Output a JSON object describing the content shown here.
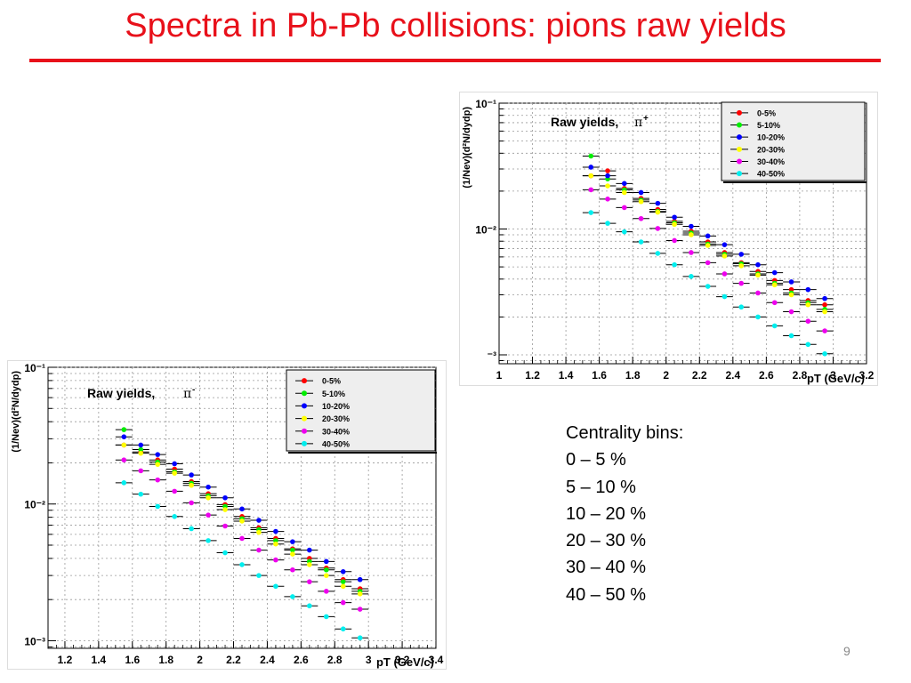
{
  "slide": {
    "title": "Spectra in Pb-Pb collisions: pions raw yields",
    "page_number": "9"
  },
  "centrality_text": {
    "heading": "Centrality bins:",
    "bins": [
      "0 – 5 %",
      "5 – 10 %",
      "10 – 20 %",
      "20 – 30 %",
      "30 – 40 %",
      "40 – 50 %"
    ]
  },
  "chart_data": [
    {
      "type": "scatter",
      "annotation": "Raw yields,",
      "particle_symbol": "π",
      "particle_charge": "+",
      "ylabel": "(1/Nev)(d²N/dydp)",
      "xlabel": "pT (GeV/c)",
      "xlim": [
        1.0,
        3.2
      ],
      "ylim": [
        0.00085,
        0.1
      ],
      "yscale": "log",
      "grid": true,
      "legend_position": "top-right",
      "x_ticks": [
        "1",
        "1.2",
        "1.4",
        "1.6",
        "1.8",
        "2",
        "2.2",
        "2.4",
        "2.6",
        "2.8",
        "3",
        "3.2"
      ],
      "y_ticks": [
        "10⁻¹",
        "10⁻²",
        "⁻³"
      ],
      "x": [
        1.55,
        1.65,
        1.75,
        1.85,
        1.95,
        2.05,
        2.15,
        2.25,
        2.35,
        2.45,
        2.55,
        2.65,
        2.75,
        2.85,
        2.95
      ],
      "series": [
        {
          "name": "0-5%",
          "color": "#ff0000",
          "values": [
            0.0265,
            0.029,
            0.021,
            0.0175,
            0.0143,
            0.0115,
            0.0096,
            0.0079,
            0.0065,
            0.0054,
            0.0046,
            0.0039,
            0.0033,
            0.0027,
            0.0025
          ]
        },
        {
          "name": "5-10%",
          "color": "#00ee00",
          "values": [
            0.038,
            0.025,
            0.0205,
            0.017,
            0.0138,
            0.0112,
            0.0093,
            0.0076,
            0.0063,
            0.0053,
            0.0044,
            0.0037,
            0.0031,
            0.0026,
            0.0023
          ]
        },
        {
          "name": "10-20%",
          "color": "#0000ff",
          "values": [
            0.031,
            0.0265,
            0.023,
            0.0195,
            0.016,
            0.0124,
            0.0105,
            0.0088,
            0.0075,
            0.0063,
            0.0052,
            0.0045,
            0.0038,
            0.0033,
            0.0028
          ]
        },
        {
          "name": "20-30%",
          "color": "#ffff00",
          "values": [
            0.0265,
            0.022,
            0.0195,
            0.0165,
            0.0136,
            0.0109,
            0.009,
            0.0074,
            0.0061,
            0.0051,
            0.0043,
            0.0036,
            0.003,
            0.0025,
            0.0022
          ]
        },
        {
          "name": "30-40%",
          "color": "#ee00ee",
          "values": [
            0.0205,
            0.0173,
            0.0148,
            0.0121,
            0.0101,
            0.0081,
            0.0065,
            0.0054,
            0.0044,
            0.0037,
            0.0031,
            0.0026,
            0.0022,
            0.00185,
            0.00155
          ]
        },
        {
          "name": "40-50%",
          "color": "#00eeee",
          "values": [
            0.0135,
            0.0111,
            0.0095,
            0.0079,
            0.0064,
            0.0052,
            0.0042,
            0.0035,
            0.0029,
            0.0024,
            0.002,
            0.0017,
            0.00142,
            0.00121,
            0.00102
          ]
        }
      ]
    },
    {
      "type": "scatter",
      "annotation": "Raw yields,",
      "particle_symbol": "π",
      "particle_charge": "-",
      "ylabel": "(1/Nev)(d²N/dydp)",
      "xlabel": "pT (GeV/c)",
      "xlim": [
        1.1,
        3.4
      ],
      "ylim": [
        0.00088,
        0.1
      ],
      "yscale": "log",
      "grid": true,
      "legend_position": "top-right",
      "x_ticks": [
        "1.2",
        "1.4",
        "1.6",
        "1.8",
        "2",
        "2.2",
        "2.4",
        "2.6",
        "2.8",
        "3",
        "3.2",
        "3.4"
      ],
      "y_ticks": [
        "10⁻¹",
        "10⁻²",
        "10⁻³"
      ],
      "x": [
        1.55,
        1.65,
        1.75,
        1.85,
        1.95,
        2.05,
        2.15,
        2.25,
        2.35,
        2.45,
        2.55,
        2.65,
        2.75,
        2.85,
        2.95
      ],
      "series": [
        {
          "name": "0-5%",
          "color": "#ff0000",
          "values": [
            0.027,
            0.024,
            0.021,
            0.018,
            0.0146,
            0.0119,
            0.0099,
            0.0081,
            0.0067,
            0.0056,
            0.0047,
            0.004,
            0.0034,
            0.0028,
            0.0024
          ]
        },
        {
          "name": "5-10%",
          "color": "#00ee00",
          "values": [
            0.035,
            0.025,
            0.0203,
            0.0172,
            0.0142,
            0.0115,
            0.0096,
            0.0078,
            0.0065,
            0.0054,
            0.0046,
            0.0038,
            0.0033,
            0.0027,
            0.0023
          ]
        },
        {
          "name": "10-20%",
          "color": "#0000ff",
          "values": [
            0.031,
            0.027,
            0.023,
            0.0197,
            0.0163,
            0.0133,
            0.0111,
            0.0092,
            0.0076,
            0.0063,
            0.0053,
            0.0046,
            0.0038,
            0.0032,
            0.0028
          ]
        },
        {
          "name": "20-30%",
          "color": "#ffff00",
          "values": [
            0.027,
            0.0235,
            0.0195,
            0.0168,
            0.0137,
            0.0111,
            0.0091,
            0.0075,
            0.0062,
            0.0051,
            0.0043,
            0.0036,
            0.003,
            0.0025,
            0.0022
          ]
        },
        {
          "name": "30-40%",
          "color": "#ee00ee",
          "values": [
            0.021,
            0.0175,
            0.015,
            0.0124,
            0.0102,
            0.0083,
            0.0069,
            0.0056,
            0.0046,
            0.0039,
            0.0033,
            0.0027,
            0.0023,
            0.0019,
            0.0017
          ]
        },
        {
          "name": "40-50%",
          "color": "#00eeee",
          "values": [
            0.0143,
            0.0118,
            0.0096,
            0.0081,
            0.0066,
            0.0054,
            0.0044,
            0.0036,
            0.003,
            0.0025,
            0.0021,
            0.0018,
            0.0015,
            0.00122,
            0.00105
          ]
        }
      ]
    }
  ]
}
